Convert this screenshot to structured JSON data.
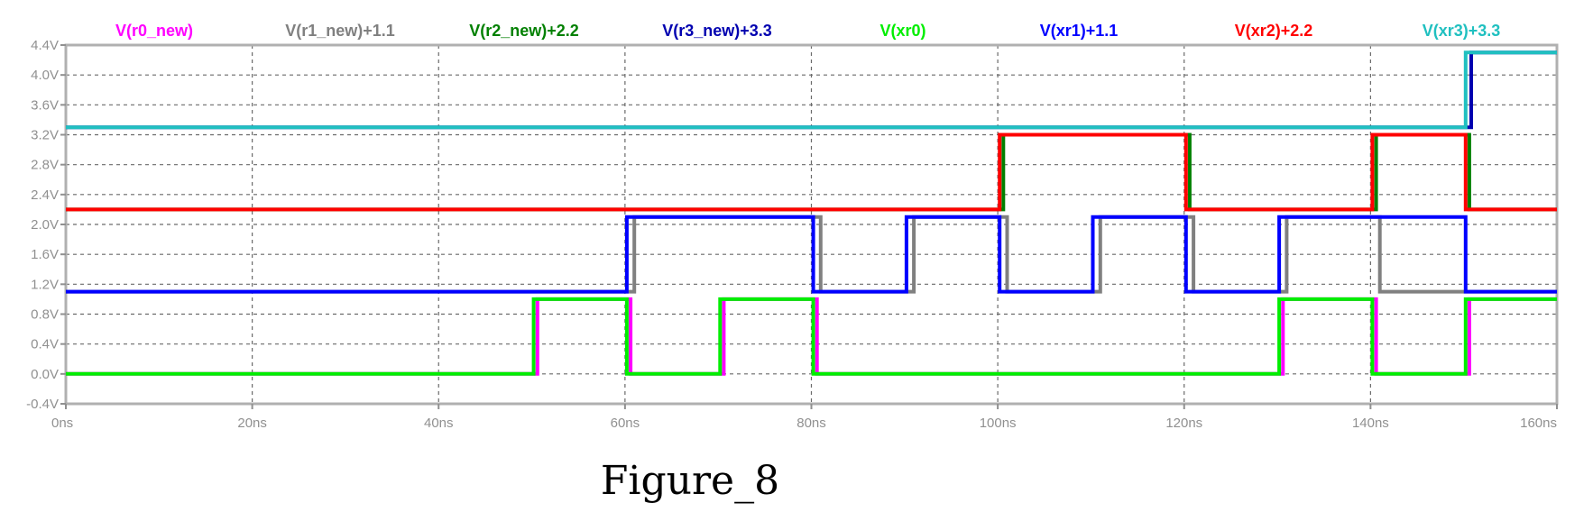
{
  "caption": "Figure_8",
  "chart_data": {
    "type": "line",
    "step": true,
    "title": "",
    "xlabel": "",
    "ylabel": "",
    "xlim": [
      0,
      160
    ],
    "ylim": [
      -0.4,
      4.4
    ],
    "grid": true,
    "legend_position": "top",
    "x_ticks": [
      {
        "value": 0,
        "label": "0ns"
      },
      {
        "value": 20,
        "label": "20ns"
      },
      {
        "value": 40,
        "label": "40ns"
      },
      {
        "value": 60,
        "label": "60ns"
      },
      {
        "value": 80,
        "label": "80ns"
      },
      {
        "value": 100,
        "label": "100ns"
      },
      {
        "value": 120,
        "label": "120ns"
      },
      {
        "value": 140,
        "label": "140ns"
      },
      {
        "value": 160,
        "label": "160ns"
      }
    ],
    "y_ticks": [
      {
        "value": 4.4,
        "label": "4.4V"
      },
      {
        "value": 4.0,
        "label": "4.0V"
      },
      {
        "value": 3.6,
        "label": "3.6V"
      },
      {
        "value": 3.2,
        "label": "3.2V"
      },
      {
        "value": 2.8,
        "label": "2.8V"
      },
      {
        "value": 2.4,
        "label": "2.4V"
      },
      {
        "value": 2.0,
        "label": "2.0V"
      },
      {
        "value": 1.6,
        "label": "1.6V"
      },
      {
        "value": 1.2,
        "label": "1.2V"
      },
      {
        "value": 0.8,
        "label": "0.8V"
      },
      {
        "value": 0.4,
        "label": "0.4V"
      },
      {
        "value": 0.0,
        "label": "0.0V"
      },
      {
        "value": -0.4,
        "label": "-0.4V"
      }
    ],
    "series": [
      {
        "name": "V(r0_new)",
        "color": "#ff00ff",
        "x": [
          0,
          50.6,
          50.6,
          60.6,
          60.6,
          70.6,
          70.6,
          80.6,
          80.6,
          130.6,
          130.6,
          140.6,
          140.6,
          150.6,
          150.6,
          160
        ],
        "y": [
          0,
          0,
          1,
          1,
          0,
          0,
          1,
          1,
          0,
          0,
          1,
          1,
          0,
          0,
          1,
          1
        ]
      },
      {
        "name": "V(r1_new)+1.1",
        "color": "#808080",
        "x": [
          0,
          61,
          61,
          81,
          81,
          91,
          91,
          101,
          101,
          111,
          111,
          121,
          121,
          131,
          131,
          141,
          141,
          151,
          151,
          160
        ],
        "y": [
          1.1,
          1.1,
          2.1,
          2.1,
          1.1,
          1.1,
          2.1,
          2.1,
          1.1,
          1.1,
          2.1,
          2.1,
          1.1,
          1.1,
          2.1,
          2.1,
          1.1,
          1.1,
          1.1,
          1.1
        ]
      },
      {
        "name": "V(r2_new)+2.2",
        "color": "#008000",
        "x": [
          0,
          100.6,
          100.6,
          120.6,
          120.6,
          140.6,
          140.6,
          150.6,
          150.6,
          160
        ],
        "y": [
          2.2,
          2.2,
          3.2,
          3.2,
          2.2,
          2.2,
          3.2,
          3.2,
          2.2,
          2.2
        ]
      },
      {
        "name": "V(r3_new)+3.3",
        "color": "#0000b0",
        "x": [
          0,
          150.8,
          150.8,
          160
        ],
        "y": [
          3.3,
          3.3,
          4.3,
          4.3
        ]
      },
      {
        "name": "V(xr0)",
        "color": "#00ee00",
        "x": [
          0,
          50.2,
          50.2,
          60.2,
          60.2,
          70.2,
          70.2,
          80.2,
          80.2,
          130.2,
          130.2,
          140.2,
          140.2,
          150.2,
          150.2,
          160
        ],
        "y": [
          0,
          0,
          1,
          1,
          0,
          0,
          1,
          1,
          0,
          0,
          1,
          1,
          0,
          0,
          1,
          1
        ]
      },
      {
        "name": "V(xr1)+1.1",
        "color": "#0000ff",
        "x": [
          0,
          60.2,
          60.2,
          80.2,
          80.2,
          90.2,
          90.2,
          100.2,
          100.2,
          110.2,
          110.2,
          120.2,
          120.2,
          130.2,
          130.2,
          150.2,
          150.2,
          160
        ],
        "y": [
          1.1,
          1.1,
          2.1,
          2.1,
          1.1,
          1.1,
          2.1,
          2.1,
          1.1,
          1.1,
          2.1,
          2.1,
          1.1,
          1.1,
          2.1,
          2.1,
          1.1,
          1.1
        ]
      },
      {
        "name": "V(xr2)+2.2",
        "color": "#ff0000",
        "x": [
          0,
          100.2,
          100.2,
          120.2,
          120.2,
          140.2,
          140.2,
          150.2,
          150.2,
          160
        ],
        "y": [
          2.2,
          2.2,
          3.2,
          3.2,
          2.2,
          2.2,
          3.2,
          3.2,
          2.2,
          2.2
        ]
      },
      {
        "name": "V(xr3)+3.3",
        "color": "#20c0c0",
        "x": [
          0,
          150.2,
          150.2,
          160
        ],
        "y": [
          3.3,
          3.3,
          4.3,
          4.3
        ]
      }
    ]
  }
}
